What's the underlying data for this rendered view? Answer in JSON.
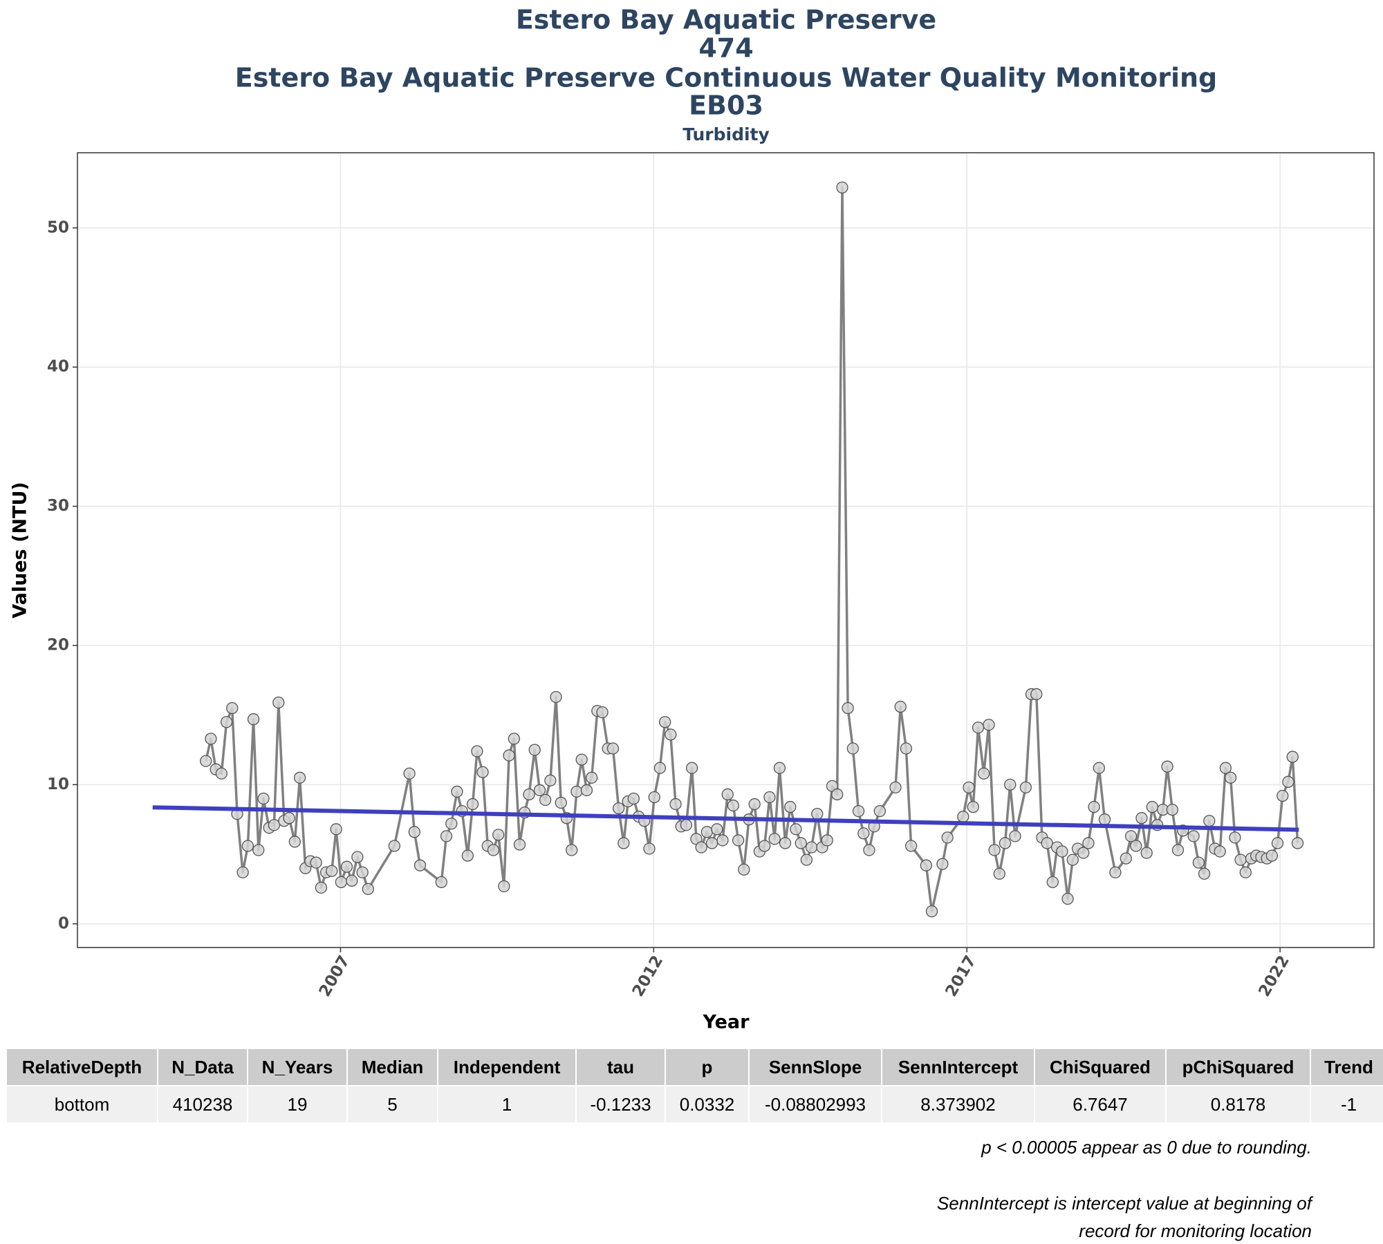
{
  "chart_data": {
    "type": "line",
    "title": [
      "Estero Bay Aquatic Preserve",
      "474",
      "Estero Bay Aquatic Preserve Continuous Water Quality Monitoring",
      "EB03"
    ],
    "subtitle": "Turbidity",
    "x_label": "Year",
    "y_label": "Values (NTU)",
    "xlim": [
      2002.8,
      2023.5
    ],
    "xticks": [
      2007,
      2012,
      2017,
      2022
    ],
    "ylim": [
      -1.7,
      55.4
    ],
    "yticks": [
      0,
      10,
      20,
      30,
      40,
      50
    ],
    "grid": true,
    "series": [
      {
        "color": "#808080",
        "markers": true,
        "x": [
          2004.85,
          2004.93,
          2005.01,
          2005.1,
          2005.18,
          2005.27,
          2005.35,
          2005.44,
          2005.52,
          2005.61,
          2005.69,
          2005.77,
          2005.86,
          2005.94,
          2006.01,
          2006.1,
          2006.18,
          2006.27,
          2006.35,
          2006.44,
          2006.52,
          2006.61,
          2006.69,
          2006.77,
          2006.86,
          2006.93,
          2007.01,
          2007.1,
          2007.18,
          2007.27,
          2007.35,
          2007.44,
          2007.86,
          2008.1,
          2008.18,
          2008.27,
          2008.61,
          2008.69,
          2008.77,
          2008.86,
          2008.94,
          2009.03,
          2009.11,
          2009.18,
          2009.27,
          2009.35,
          2009.44,
          2009.52,
          2009.61,
          2009.69,
          2009.77,
          2009.86,
          2009.94,
          2010.01,
          2010.1,
          2010.18,
          2010.27,
          2010.35,
          2010.44,
          2010.52,
          2010.61,
          2010.69,
          2010.77,
          2010.85,
          2010.93,
          2011.01,
          2011.1,
          2011.18,
          2011.27,
          2011.35,
          2011.44,
          2011.52,
          2011.59,
          2011.68,
          2011.76,
          2011.85,
          2011.93,
          2012.01,
          2012.1,
          2012.18,
          2012.27,
          2012.35,
          2012.44,
          2012.52,
          2012.61,
          2012.68,
          2012.76,
          2012.85,
          2012.93,
          2013.01,
          2013.1,
          2013.18,
          2013.27,
          2013.35,
          2013.44,
          2013.52,
          2013.61,
          2013.69,
          2013.77,
          2013.85,
          2013.93,
          2014.01,
          2014.1,
          2014.18,
          2014.27,
          2014.35,
          2014.44,
          2014.52,
          2014.61,
          2014.69,
          2014.77,
          2014.85,
          2014.93,
          2015.01,
          2015.1,
          2015.18,
          2015.27,
          2015.35,
          2015.44,
          2015.52,
          2015.61,
          2015.86,
          2015.94,
          2016.03,
          2016.11,
          2016.35,
          2016.44,
          2016.61,
          2016.69,
          2016.94,
          2017.03,
          2017.1,
          2017.18,
          2017.27,
          2017.35,
          2017.44,
          2017.52,
          2017.61,
          2017.69,
          2017.77,
          2017.94,
          2018.03,
          2018.11,
          2018.2,
          2018.28,
          2018.37,
          2018.44,
          2018.52,
          2018.61,
          2018.69,
          2018.77,
          2018.86,
          2018.94,
          2019.03,
          2019.11,
          2019.2,
          2019.37,
          2019.54,
          2019.62,
          2019.7,
          2019.79,
          2019.87,
          2019.96,
          2020.04,
          2020.13,
          2020.2,
          2020.28,
          2020.37,
          2020.45,
          2020.62,
          2020.7,
          2020.79,
          2020.87,
          2020.96,
          2021.04,
          2021.13,
          2021.21,
          2021.28,
          2021.37,
          2021.45,
          2021.54,
          2021.62,
          2021.7,
          2021.79,
          2021.87,
          2021.96,
          2022.04,
          2022.13,
          2022.2,
          2022.28
        ],
        "values": [
          11.7,
          13.3,
          11.1,
          10.8,
          14.5,
          15.5,
          7.9,
          3.7,
          5.6,
          14.7,
          5.3,
          9.0,
          6.9,
          7.1,
          15.9,
          7.4,
          7.6,
          5.9,
          10.5,
          4.0,
          4.5,
          4.4,
          2.6,
          3.7,
          3.8,
          6.8,
          3.0,
          4.1,
          3.1,
          4.8,
          3.7,
          2.5,
          5.6,
          10.8,
          6.6,
          4.2,
          3.0,
          6.3,
          7.2,
          9.5,
          8.1,
          4.9,
          8.6,
          12.4,
          10.9,
          5.6,
          5.3,
          6.4,
          2.7,
          12.1,
          13.3,
          5.7,
          8.0,
          9.3,
          12.5,
          9.6,
          8.9,
          10.3,
          16.3,
          8.7,
          7.6,
          5.3,
          9.5,
          11.8,
          9.6,
          10.5,
          15.3,
          15.2,
          12.6,
          12.6,
          8.3,
          5.8,
          8.8,
          9.0,
          7.7,
          7.4,
          5.4,
          9.1,
          11.2,
          14.5,
          13.6,
          8.6,
          7.0,
          7.1,
          11.2,
          6.1,
          5.5,
          6.6,
          5.8,
          6.8,
          6.0,
          9.3,
          8.5,
          6.0,
          3.9,
          7.5,
          8.6,
          5.2,
          5.6,
          9.1,
          6.1,
          11.2,
          5.8,
          8.4,
          6.8,
          5.8,
          4.6,
          5.5,
          7.9,
          5.5,
          6.0,
          9.9,
          9.3,
          52.9,
          15.5,
          12.6,
          8.1,
          6.5,
          5.3,
          7.0,
          8.1,
          9.8,
          15.6,
          12.6,
          5.6,
          4.2,
          0.9,
          4.3,
          6.2,
          7.7,
          9.8,
          8.4,
          14.1,
          10.8,
          14.3,
          5.3,
          3.6,
          5.8,
          10.0,
          6.3,
          9.8,
          16.5,
          16.5,
          6.2,
          5.8,
          3.0,
          5.5,
          5.2,
          1.8,
          4.6,
          5.4,
          5.1,
          5.8,
          8.4,
          11.2,
          7.5,
          3.7,
          4.7,
          6.3,
          5.6,
          7.6,
          5.1,
          8.4,
          7.1,
          8.2,
          11.3,
          8.2,
          5.3,
          6.7,
          6.3,
          4.4,
          3.6,
          7.4,
          5.4,
          5.2,
          11.2,
          10.5,
          6.2,
          4.6,
          3.7,
          4.7,
          4.9,
          4.8,
          4.7,
          4.9,
          5.8,
          9.2,
          10.2,
          12.0,
          5.8
        ]
      },
      {
        "color": "#3f3fbf",
        "markers": false,
        "x": [
          2004.0,
          2022.3
        ],
        "values": [
          8.37,
          6.76
        ]
      }
    ]
  },
  "table": {
    "header": [
      "RelativeDepth",
      "N_Data",
      "N_Years",
      "Median",
      "Independent",
      "tau",
      "p",
      "SennSlope",
      "SennIntercept",
      "ChiSquared",
      "pChiSquared",
      "Trend"
    ],
    "rows": [
      [
        "bottom",
        410238,
        19,
        5,
        1,
        -0.1233,
        0.0332,
        -0.08802993,
        8.373902,
        6.7647,
        0.8178,
        -1
      ]
    ]
  },
  "notes": [
    "p < 0.00005 appear as 0 due to rounding.",
    "SennIntercept is intercept value at beginning of",
    "record for monitoring location"
  ]
}
